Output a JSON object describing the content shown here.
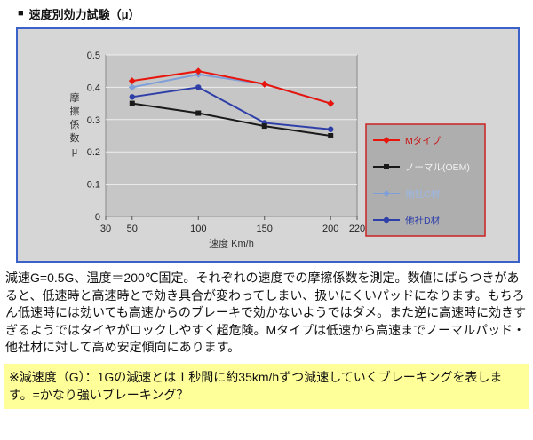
{
  "header": {
    "bullet": "■",
    "title": "速度別効力試験（μ）"
  },
  "colors": {
    "panel_border": "#3a62c8",
    "chart_bg": "#d6d6d6",
    "plot_bg": "#c6c6c6",
    "gridline": "#efefef",
    "legend_bg": "#aeaeae",
    "legend_border": "#cc2222",
    "note_bg": "#ffff99"
  },
  "chart_data": {
    "type": "line",
    "x": [
      50,
      100,
      150,
      200
    ],
    "xticks": [
      30,
      50,
      100,
      150,
      200,
      220
    ],
    "xlim": [
      30,
      220
    ],
    "ylim": [
      0,
      0.5
    ],
    "yticks": [
      0,
      0.1,
      0.2,
      0.3,
      0.4,
      0.5
    ],
    "ytick_labels": [
      "0",
      "0.1",
      "0.2",
      "0.3",
      "0.4",
      "0.5"
    ],
    "xlabel": "速度 Km/h",
    "ylabel": "摩擦係数μ",
    "grid": "horizontal",
    "legend_position": "right",
    "series": [
      {
        "name": "Mタイプ",
        "color": "#e8150d",
        "label_color": "#cc1111",
        "marker": "diamond",
        "values": [
          0.42,
          0.45,
          0.41,
          0.35
        ]
      },
      {
        "name": "ノーマル(OEM)",
        "color": "#1a1a1a",
        "label_color": "#f2f2f2",
        "marker": "square",
        "values": [
          0.35,
          0.32,
          0.28,
          0.25
        ]
      },
      {
        "name": "他社C材",
        "color": "#7f9fd8",
        "label_color": "#9ab8e8",
        "marker": "diamond",
        "values": [
          0.4,
          0.44,
          0.41,
          0.35
        ]
      },
      {
        "name": "他社D材",
        "color": "#2f3fa8",
        "label_color": "#2f3fa8",
        "marker": "circle",
        "values": [
          0.37,
          0.4,
          0.29,
          0.27
        ]
      }
    ]
  },
  "description": "減速G=0.5G、温度＝200℃固定。それぞれの速度での摩擦係数を測定。数値にばらつきがあると、低速時と高速時とで効き具合が変わってしまい、扱いにくいパッドになります。もちろん低速時には効いても高速からのブレーキで効かないようではダメ。また逆に高速時に効きすぎるようではタイヤがロックしやすく超危険。Mタイプは低速から高速までノーマルパッド・他社材に対して高め安定傾向にあります。",
  "note": "※減速度（G）：1Gの減速とは１秒間に約35km/hずつ減速していくブレーキングを表します。=かなり強いブレーキング？"
}
